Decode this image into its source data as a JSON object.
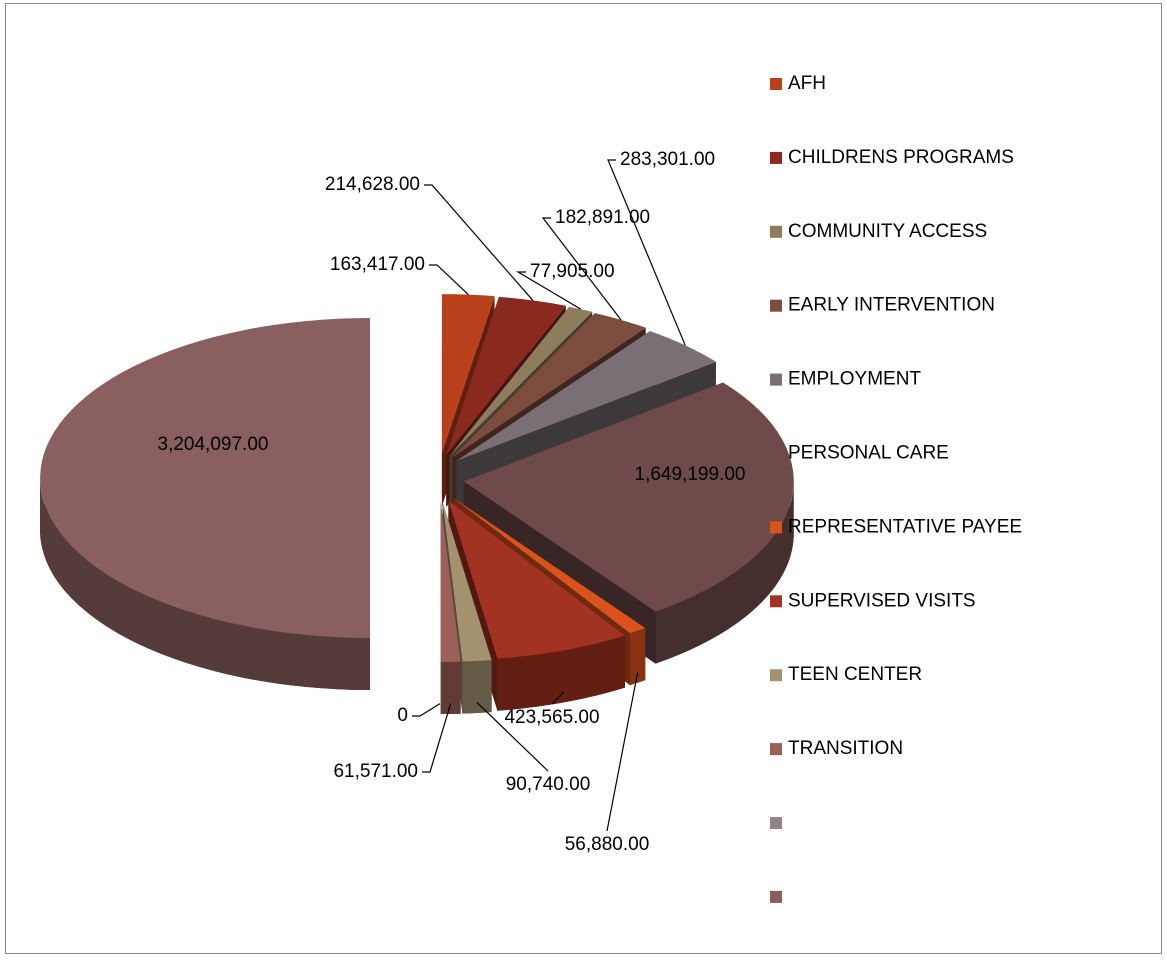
{
  "chart_data": {
    "type": "pie",
    "categories": [
      "AFH",
      "CHILDRENS PROGRAMS",
      "COMMUNITY ACCESS",
      "EARLY INTERVENTION",
      "EMPLOYMENT",
      "PERSONAL CARE",
      "REPRESENTATIVE PAYEE",
      "SUPERVISED VISITS",
      "TEEN CENTER",
      "TRANSITION",
      null,
      null
    ],
    "values": [
      163417,
      214628,
      77905,
      182891,
      283301,
      1649199,
      56880,
      423565,
      90740,
      61571,
      0,
      3204097
    ],
    "value_labels": [
      "163,417.00",
      "214,628.00",
      "77,905.00",
      "182,891.00",
      "283,301.00",
      "1,649,199.00",
      "56,880.00",
      "423,565.00",
      "90,740.00",
      "61,571.00",
      "0",
      "3,204,097.00"
    ],
    "colors": [
      "#b8401a",
      "#8a2a1e",
      "#8e7c5c",
      "#7c4c3e",
      "#7a6f74",
      "#6f4a4a",
      "#da531c",
      "#a23222",
      "#a3916f",
      "#9c6058",
      "#918389",
      "#8a5f5f"
    ],
    "legend": "right"
  }
}
